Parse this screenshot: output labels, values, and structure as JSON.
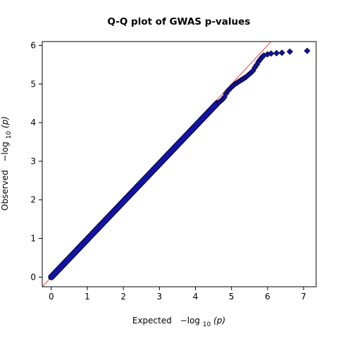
{
  "chart_data": {
    "type": "scatter",
    "title": "Q-Q plot of GWAS p-values",
    "xlabel": {
      "prefix": "Expected",
      "func": "−log",
      "sub": "10",
      "arg": "(p)"
    },
    "ylabel": {
      "prefix": "Observed",
      "func": "−log",
      "sub": "10",
      "arg": "(p)"
    },
    "xlim": [
      -0.25,
      7.35
    ],
    "ylim": [
      -0.25,
      6.1
    ],
    "xticks": [
      0,
      1,
      2,
      3,
      4,
      5,
      6,
      7
    ],
    "yticks": [
      0,
      1,
      2,
      3,
      4,
      5,
      6
    ],
    "grid": false,
    "legend": "none",
    "reference_line": {
      "slope": 1,
      "intercept": 0,
      "color": "#e8463a"
    },
    "marker": {
      "shape": "diamond",
      "fill": "#1414a0",
      "stroke": "#000033"
    },
    "dense_band": {
      "x_start": 0.0,
      "x_end": 4.6,
      "y_start": 0.0,
      "y_end": 4.5
    },
    "points": [
      [
        4.65,
        4.52
      ],
      [
        4.7,
        4.56
      ],
      [
        4.75,
        4.6
      ],
      [
        4.8,
        4.66
      ],
      [
        4.85,
        4.75
      ],
      [
        4.9,
        4.82
      ],
      [
        4.95,
        4.87
      ],
      [
        5.0,
        4.92
      ],
      [
        5.05,
        4.96
      ],
      [
        5.1,
        5.0
      ],
      [
        5.15,
        5.03
      ],
      [
        5.2,
        5.06
      ],
      [
        5.25,
        5.09
      ],
      [
        5.3,
        5.12
      ],
      [
        5.35,
        5.15
      ],
      [
        5.4,
        5.18
      ],
      [
        5.45,
        5.22
      ],
      [
        5.5,
        5.26
      ],
      [
        5.55,
        5.3
      ],
      [
        5.6,
        5.35
      ],
      [
        5.65,
        5.43
      ],
      [
        5.7,
        5.5
      ],
      [
        5.75,
        5.58
      ],
      [
        5.8,
        5.64
      ],
      [
        5.85,
        5.7
      ],
      [
        5.9,
        5.74
      ],
      [
        6.0,
        5.77
      ],
      [
        6.1,
        5.79
      ],
      [
        6.25,
        5.8
      ],
      [
        6.4,
        5.81
      ],
      [
        6.62,
        5.84
      ],
      [
        7.1,
        5.86
      ]
    ]
  }
}
